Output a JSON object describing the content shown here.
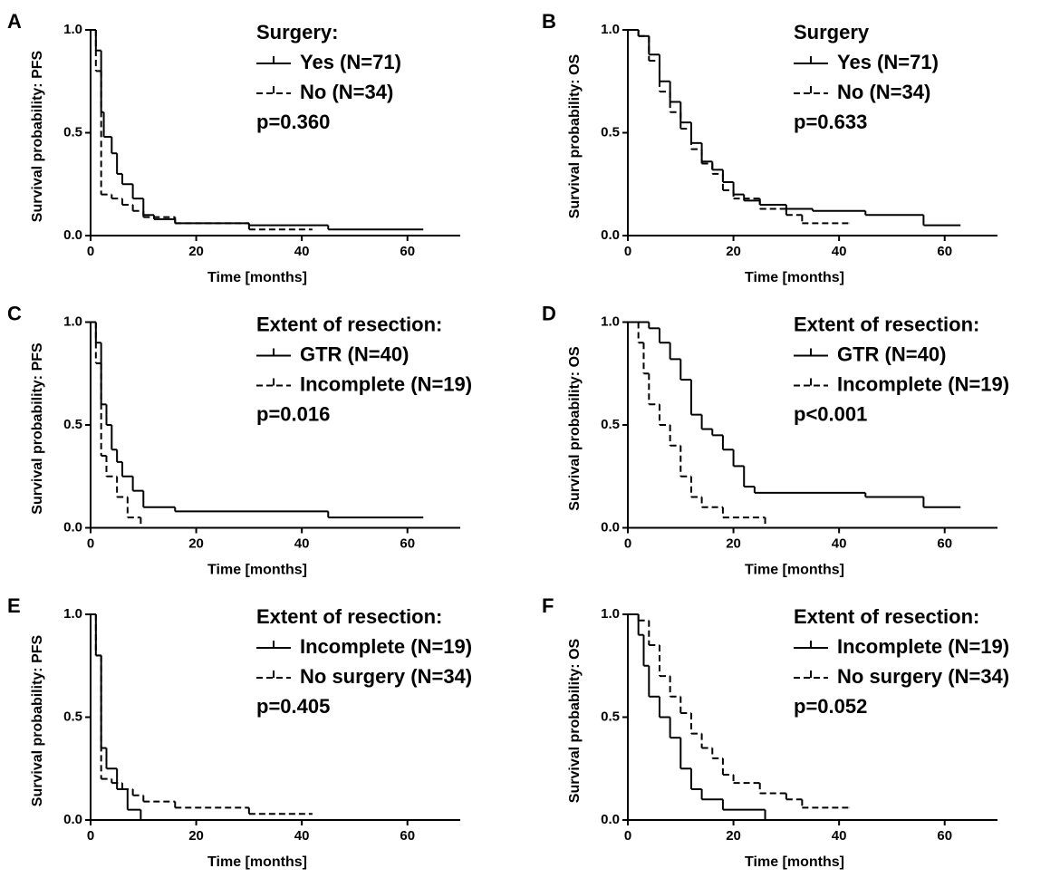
{
  "chart_data": [
    {
      "type": "step",
      "panel": "A",
      "y_label": "Survival probability: PFS",
      "x_label": "Time [months]",
      "legend_title": "Surgery:",
      "annotation": "p=0.360",
      "xlim": [
        0,
        70
      ],
      "xticks": [
        0,
        20,
        40,
        60
      ],
      "ylim": [
        0,
        1
      ],
      "yticks": [
        {
          "value": 0,
          "label": "0.0"
        },
        {
          "value": 0.5,
          "label": "0.5"
        },
        {
          "value": 1,
          "label": "1.0"
        }
      ],
      "series": [
        {
          "name": "Yes (N=71)",
          "color": "#000000",
          "dash": "solid",
          "x": [
            0,
            1,
            2,
            2.5,
            4,
            5,
            6,
            8,
            10,
            12,
            16,
            30,
            45,
            63
          ],
          "values": [
            1,
            0.9,
            0.6,
            0.48,
            0.4,
            0.3,
            0.25,
            0.18,
            0.1,
            0.08,
            0.06,
            0.05,
            0.03,
            0.03
          ]
        },
        {
          "name": "No (N=34)",
          "color": "#000000",
          "dash": "dashed",
          "x": [
            0,
            1,
            2,
            4,
            6,
            8,
            10,
            16,
            30,
            42
          ],
          "values": [
            1,
            0.8,
            0.2,
            0.18,
            0.15,
            0.12,
            0.09,
            0.06,
            0.03,
            0.03
          ]
        }
      ]
    },
    {
      "type": "step",
      "panel": "B",
      "y_label": "Survival probability: OS",
      "x_label": "Time [months]",
      "legend_title": "Surgery",
      "annotation": "p=0.633",
      "xlim": [
        0,
        70
      ],
      "xticks": [
        0,
        20,
        40,
        60
      ],
      "ylim": [
        0,
        1
      ],
      "yticks": [
        {
          "value": 0,
          "label": "0.0"
        },
        {
          "value": 0.5,
          "label": "0.5"
        },
        {
          "value": 1,
          "label": "1.0"
        }
      ],
      "series": [
        {
          "name": "Yes (N=71)",
          "color": "#000000",
          "dash": "solid",
          "x": [
            0,
            2,
            4,
            6,
            8,
            10,
            12,
            14,
            16,
            18,
            20,
            22,
            25,
            30,
            35,
            45,
            56,
            63
          ],
          "values": [
            1,
            0.97,
            0.88,
            0.75,
            0.65,
            0.55,
            0.45,
            0.36,
            0.32,
            0.26,
            0.2,
            0.17,
            0.15,
            0.13,
            0.12,
            0.1,
            0.05,
            0.05
          ]
        },
        {
          "name": "No (N=34)",
          "color": "#000000",
          "dash": "dashed",
          "x": [
            0,
            2,
            4,
            6,
            8,
            10,
            12,
            14,
            16,
            18,
            20,
            25,
            30,
            33,
            42
          ],
          "values": [
            1,
            0.97,
            0.85,
            0.7,
            0.6,
            0.52,
            0.42,
            0.35,
            0.3,
            0.22,
            0.18,
            0.13,
            0.1,
            0.06,
            0.06
          ]
        }
      ]
    },
    {
      "type": "step",
      "panel": "C",
      "y_label": "Survival probability: PFS",
      "x_label": "Time [months]",
      "legend_title": "Extent of resection:",
      "annotation": "p=0.016",
      "xlim": [
        0,
        70
      ],
      "xticks": [
        0,
        20,
        40,
        60
      ],
      "ylim": [
        0,
        1
      ],
      "yticks": [
        {
          "value": 0,
          "label": "0.0"
        },
        {
          "value": 0.5,
          "label": "0.5"
        },
        {
          "value": 1,
          "label": "1.0"
        }
      ],
      "series": [
        {
          "name": "GTR (N=40)",
          "color": "#000000",
          "dash": "solid",
          "x": [
            0,
            1,
            2,
            3,
            4,
            5,
            6,
            8,
            10,
            16,
            45,
            63
          ],
          "values": [
            1,
            0.9,
            0.6,
            0.5,
            0.38,
            0.32,
            0.25,
            0.18,
            0.1,
            0.08,
            0.05,
            0.05
          ]
        },
        {
          "name": "Incomplete (N=19)",
          "color": "#000000",
          "dash": "dashed",
          "x": [
            0,
            1,
            2,
            3,
            5,
            7,
            9.5
          ],
          "values": [
            1,
            0.8,
            0.35,
            0.25,
            0.15,
            0.05,
            0
          ]
        }
      ]
    },
    {
      "type": "step",
      "panel": "D",
      "y_label": "Survival probability: OS",
      "x_label": "Time [months]",
      "legend_title": "Extent of resection:",
      "annotation": "p<0.001",
      "xlim": [
        0,
        70
      ],
      "xticks": [
        0,
        20,
        40,
        60
      ],
      "ylim": [
        0,
        1
      ],
      "yticks": [
        {
          "value": 0,
          "label": "0.0"
        },
        {
          "value": 0.5,
          "label": "0.5"
        },
        {
          "value": 1,
          "label": "1.0"
        }
      ],
      "series": [
        {
          "name": "GTR (N=40)",
          "color": "#000000",
          "dash": "solid",
          "x": [
            0,
            4,
            6,
            8,
            10,
            12,
            14,
            16,
            18,
            20,
            22,
            24,
            45,
            56,
            63
          ],
          "values": [
            1,
            0.97,
            0.9,
            0.82,
            0.72,
            0.55,
            0.48,
            0.45,
            0.38,
            0.3,
            0.2,
            0.17,
            0.15,
            0.1,
            0.1
          ]
        },
        {
          "name": "Incomplete (N=19)",
          "color": "#000000",
          "dash": "dashed",
          "x": [
            0,
            2,
            3,
            4,
            6,
            8,
            10,
            12,
            14,
            18,
            26
          ],
          "values": [
            1,
            0.9,
            0.75,
            0.6,
            0.5,
            0.4,
            0.25,
            0.15,
            0.1,
            0.05,
            0
          ]
        }
      ]
    },
    {
      "type": "step",
      "panel": "E",
      "y_label": "Survival probability: PFS",
      "x_label": "Time [months]",
      "legend_title": "Extent of resection:",
      "annotation": "p=0.405",
      "xlim": [
        0,
        70
      ],
      "xticks": [
        0,
        20,
        40,
        60
      ],
      "ylim": [
        0,
        1
      ],
      "yticks": [
        {
          "value": 0,
          "label": "0.0"
        },
        {
          "value": 0.5,
          "label": "0.5"
        },
        {
          "value": 1,
          "label": "1.0"
        }
      ],
      "series": [
        {
          "name": "Incomplete (N=19)",
          "color": "#000000",
          "dash": "solid",
          "x": [
            0,
            1,
            2,
            3,
            5,
            7,
            9.5
          ],
          "values": [
            1,
            0.8,
            0.35,
            0.25,
            0.15,
            0.05,
            0
          ]
        },
        {
          "name": "No surgery (N=34)",
          "color": "#000000",
          "dash": "dashed",
          "x": [
            0,
            1,
            2,
            4,
            6,
            8,
            10,
            16,
            30,
            42
          ],
          "values": [
            1,
            0.8,
            0.2,
            0.18,
            0.15,
            0.12,
            0.09,
            0.06,
            0.03,
            0.03
          ]
        }
      ]
    },
    {
      "type": "step",
      "panel": "F",
      "y_label": "Survival probability: OS",
      "x_label": "Time [months]",
      "legend_title": "Extent of resection:",
      "annotation": "p=0.052",
      "xlim": [
        0,
        70
      ],
      "xticks": [
        0,
        20,
        40,
        60
      ],
      "ylim": [
        0,
        1
      ],
      "yticks": [
        {
          "value": 0,
          "label": "0.0"
        },
        {
          "value": 0.5,
          "label": "0.5"
        },
        {
          "value": 1,
          "label": "1.0"
        }
      ],
      "series": [
        {
          "name": "Incomplete (N=19)",
          "color": "#000000",
          "dash": "solid",
          "x": [
            0,
            2,
            3,
            4,
            6,
            8,
            10,
            12,
            14,
            18,
            26
          ],
          "values": [
            1,
            0.9,
            0.75,
            0.6,
            0.5,
            0.4,
            0.25,
            0.15,
            0.1,
            0.05,
            0
          ]
        },
        {
          "name": "No surgery (N=34)",
          "color": "#000000",
          "dash": "dashed",
          "x": [
            0,
            2,
            4,
            6,
            8,
            10,
            12,
            14,
            16,
            18,
            20,
            25,
            30,
            33,
            42
          ],
          "values": [
            1,
            0.97,
            0.85,
            0.7,
            0.6,
            0.52,
            0.42,
            0.35,
            0.3,
            0.22,
            0.18,
            0.13,
            0.1,
            0.06,
            0.06
          ]
        }
      ]
    }
  ]
}
